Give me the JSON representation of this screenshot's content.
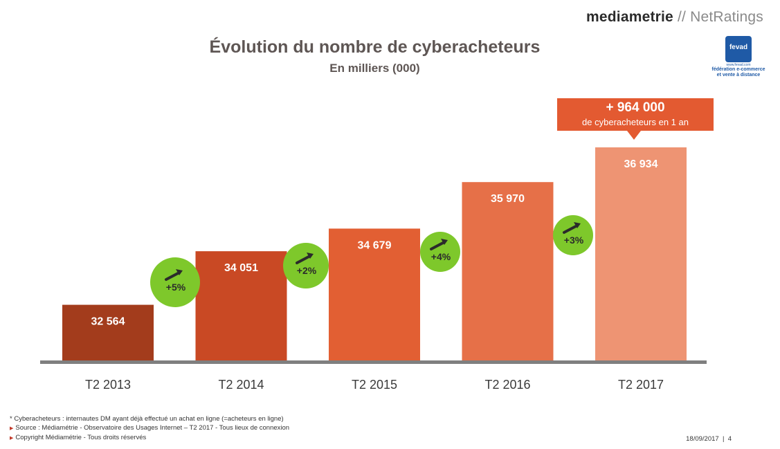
{
  "brand": {
    "name": "mediametrie",
    "separator": "//",
    "product": "NetRatings"
  },
  "fevad": {
    "logo_text": "fevad",
    "url": "www.fevad.com",
    "line1": "fédération e-commerce",
    "line2": "et vente à distance"
  },
  "callout": {
    "value": "+ 964 000",
    "text": "de cyberacheteurs en 1 an"
  },
  "footnotes": {
    "note1": "* Cyberacheteurs : internautes DM ayant déjà effectué un achat en ligne (=acheteurs en ligne)",
    "note2": "Source : Médiamétrie - Observatoire des Usages Internet – T2 2017 - Tous lieux de connexion",
    "note3": "Copyright Médiamétrie - Tous droits réservés"
  },
  "page": {
    "date": "18/09/2017",
    "separator": "|",
    "number": "4"
  },
  "chart_data": {
    "type": "bar",
    "title": "Évolution du nombre de cyberacheteurs",
    "subtitle": "En milliers (000)",
    "categories": [
      "T2 2013",
      "T2 2014",
      "T2 2015",
      "T2 2016",
      "T2 2017"
    ],
    "values": [
      32564,
      34051,
      34679,
      35970,
      36934
    ],
    "value_labels": [
      "32 564",
      "34 051",
      "34 679",
      "35 970",
      "36 934"
    ],
    "bar_colors": [
      "#a33c1c",
      "#c94924",
      "#e25f33",
      "#e67048",
      "#ee9473"
    ],
    "growth": [
      "+5%",
      "+2%",
      "+4%",
      "+3%"
    ],
    "growth_color": "#7ec82b",
    "ylim": [
      0,
      37000
    ],
    "grid": false,
    "legend": "none"
  }
}
